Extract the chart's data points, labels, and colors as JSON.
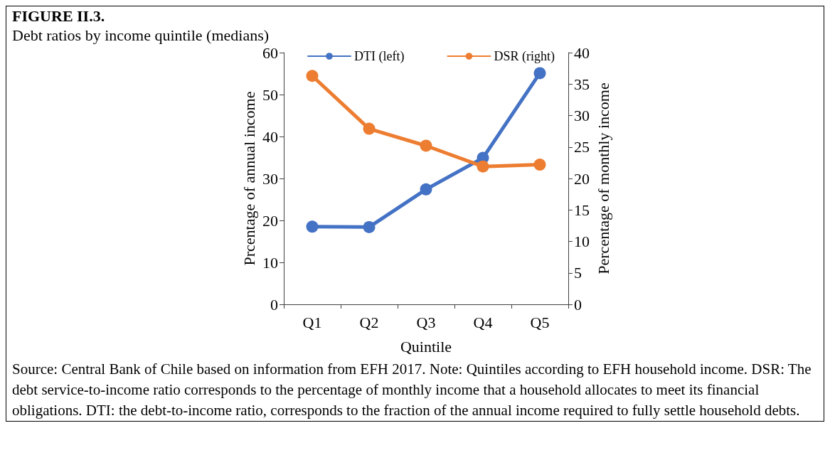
{
  "chart_data": {
    "type": "line",
    "title": "FIGURE II.3.",
    "subtitle": "Debt ratios by income quintile (medians)",
    "xlabel": "Quintile",
    "ylabel": "Prcentage of annual income",
    "y2label": "Percentage of monthly income",
    "categories": [
      "Q1",
      "Q2",
      "Q3",
      "Q4",
      "Q5"
    ],
    "series": [
      {
        "name": "DTI (left)",
        "color": "#4472c4",
        "values": [
          18.5,
          18.4,
          27.4,
          34.9,
          55.1
        ]
      },
      {
        "name": "DSR (right)",
        "color": "#ed7d31",
        "axis": "y2",
        "values": [
          36.3,
          27.9,
          25.2,
          21.9,
          22.2
        ]
      }
    ],
    "ylim": [
      0,
      60
    ],
    "yticks": [
      0,
      10,
      20,
      30,
      40,
      50,
      60
    ],
    "y2lim": [
      0,
      40
    ],
    "y2ticks": [
      0,
      5,
      10,
      15,
      20,
      25,
      30,
      35,
      40
    ],
    "grid": false,
    "legend": "top",
    "marker": "circle",
    "line_style": "solid",
    "annotations": [
      "Source: Central Bank of Chile based on information from EFH 2017. Note: Quintiles according to EFH household income. DSR: The debt service-to-income ratio corresponds to the percentage of monthly income that a household allocates to meet its financial obligations.  DTI: the debt-to-income ratio, corresponds to the fraction of the annual income required to fully settle household debts."
    ]
  }
}
